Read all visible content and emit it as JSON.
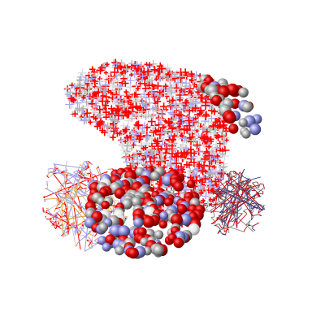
{
  "viewer": {
    "background": "#ffffff",
    "representations": [
      {
        "name": "cross-markers",
        "style": "crosses",
        "colors": [
          "#ff0000",
          "#a8a8f0",
          "#b4b4b4",
          "#dcdcdc"
        ]
      },
      {
        "name": "space-fill-lower",
        "style": "spheres",
        "colors": [
          "#c80000",
          "#9a9a9a",
          "#8a8ad8",
          "#e6e6e6"
        ]
      },
      {
        "name": "space-fill-upper-right",
        "style": "spheres",
        "colors": [
          "#c80000",
          "#9a9a9a",
          "#8a8ad8"
        ]
      },
      {
        "name": "wireframe-left",
        "style": "sticks",
        "colors": [
          "#a0a0e8",
          "#c8c8c8",
          "#ff0000",
          "#e0a040"
        ]
      },
      {
        "name": "wireframe-right",
        "style": "sticks",
        "colors": [
          "#808080",
          "#404080",
          "#c80000"
        ]
      }
    ]
  }
}
